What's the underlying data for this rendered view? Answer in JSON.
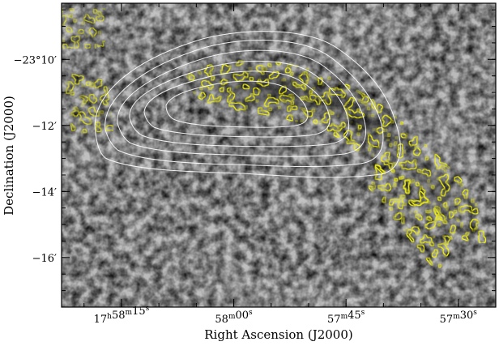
{
  "chart_data": {
    "type": "heatmap",
    "description_kind": "radio-astronomy map: greyscale image with yellow high-resolution contours and white low-resolution contours",
    "xlabel": "Right Ascension (J2000)",
    "ylabel": "Declination (J2000)",
    "x_ticks": [
      {
        "label": "17",
        "h": "h",
        "m_val": "58",
        "m": "m",
        "s_val": "15",
        "s": "s",
        "value_seconds": 64695
      },
      {
        "label": "58",
        "m": "m",
        "s_val": "00",
        "s": "s",
        "value_seconds": 64680
      },
      {
        "label": "57",
        "m": "m",
        "s_val": "45",
        "s": "s",
        "value_seconds": 64665
      },
      {
        "label": "57",
        "m": "m",
        "s_val": "30",
        "s": "s",
        "value_seconds": 64650
      }
    ],
    "y_ticks": [
      {
        "label": "−23°10′",
        "value_arcmin": -1390
      },
      {
        "label": "−12′",
        "value_arcmin": -1392
      },
      {
        "label": "−14′",
        "value_arcmin": -1394
      },
      {
        "label": "−16′",
        "value_arcmin": -1396
      }
    ],
    "xlim_seconds": [
      64703,
      64645
    ],
    "ylim_arcmin": [
      -1388.3,
      -1397.5
    ],
    "colormap": "greyscale",
    "contour_colors": {
      "high_res": "#f2f200",
      "low_res": "#ffffff"
    },
    "low_res_contour_levels": 6,
    "emission_ridge": "arc of bright emission from upper centre curving to lower right"
  }
}
